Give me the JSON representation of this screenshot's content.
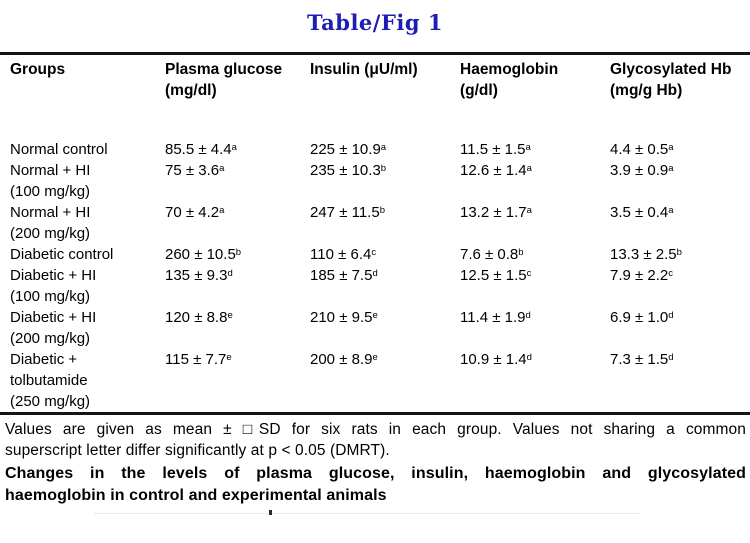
{
  "title": "Table/Fig 1",
  "title_color": "#1d1db5",
  "table": {
    "headers": [
      {
        "lines": [
          "Groups"
        ]
      },
      {
        "lines": [
          "Plasma glucose",
          "(mg/dl)"
        ]
      },
      {
        "lines": [
          "Insulin (μU/ml)"
        ]
      },
      {
        "lines": [
          "Haemoglobin",
          "(g/dl)"
        ]
      },
      {
        "lines": [
          "Glycosylated Hb",
          "(mg/g Hb)"
        ]
      }
    ],
    "rows": [
      {
        "group_lines": [
          "Normal control"
        ],
        "cells": [
          {
            "value": "85.5 ± 4.4",
            "sup": "a"
          },
          {
            "value": "225 ± 10.9",
            "sup": "a"
          },
          {
            "value": "11.5 ± 1.5",
            "sup": "a"
          },
          {
            "value": "4.4 ± 0.5",
            "sup": "a"
          }
        ]
      },
      {
        "group_lines": [
          "Normal + HI",
          "(100 mg/kg)"
        ],
        "cells": [
          {
            "value": "75 ± 3.6",
            "sup": "a"
          },
          {
            "value": "235 ± 10.3",
            "sup": "b"
          },
          {
            "value": "12.6 ± 1.4",
            "sup": "a"
          },
          {
            "value": "3.9 ± 0.9",
            "sup": "a"
          }
        ]
      },
      {
        "group_lines": [
          "Normal + HI",
          "(200 mg/kg)"
        ],
        "cells": [
          {
            "value": "70 ± 4.2",
            "sup": "a"
          },
          {
            "value": "247 ± 11.5",
            "sup": "b"
          },
          {
            "value": "13.2 ± 1.7",
            "sup": "a"
          },
          {
            "value": "3.5 ± 0.4",
            "sup": "a"
          }
        ]
      },
      {
        "group_lines": [
          "Diabetic control"
        ],
        "cells": [
          {
            "value": "260 ± 10.5",
            "sup": "b"
          },
          {
            "value": "110 ± 6.4",
            "sup": "c"
          },
          {
            "value": "7.6 ± 0.8",
            "sup": "b"
          },
          {
            "value": "13.3 ± 2.5",
            "sup": "b"
          }
        ]
      },
      {
        "group_lines": [
          "Diabetic + HI",
          "(100 mg/kg)"
        ],
        "cells": [
          {
            "value": "135 ± 9.3",
            "sup": "d"
          },
          {
            "value": "185 ± 7.5",
            "sup": "d"
          },
          {
            "value": "12.5 ± 1.5",
            "sup": "c"
          },
          {
            "value": "7.9 ± 2.2",
            "sup": "c"
          }
        ]
      },
      {
        "group_lines": [
          "Diabetic + HI",
          "(200 mg/kg)"
        ],
        "cells": [
          {
            "value": "120 ± 8.8",
            "sup": "e"
          },
          {
            "value": "210 ± 9.5",
            "sup": "e"
          },
          {
            "value": "11.4 ± 1.9",
            "sup": "d"
          },
          {
            "value": "6.9 ± 1.0",
            "sup": "d"
          }
        ]
      },
      {
        "group_lines": [
          "Diabetic +",
          "tolbutamide",
          "(250 mg/kg)"
        ],
        "cells": [
          {
            "value": "115 ± 7.7",
            "sup": "e"
          },
          {
            "value": "200 ± 8.9",
            "sup": "e"
          },
          {
            "value": "10.9 ± 1.4",
            "sup": "d"
          },
          {
            "value": "7.3 ± 1.5",
            "sup": "d"
          }
        ]
      }
    ]
  },
  "footnote": {
    "lines": [
      "Values are given as mean ± □SD for six rats in each group. Values not sharing a common",
      "superscript letter differ significantly at p < 0.05 (DMRT)."
    ]
  },
  "caption": {
    "lines": [
      "Changes in the levels of plasma glucose, insulin, haemoglobin and glycosylated",
      "haemoglobin in control and experimental animals"
    ]
  }
}
